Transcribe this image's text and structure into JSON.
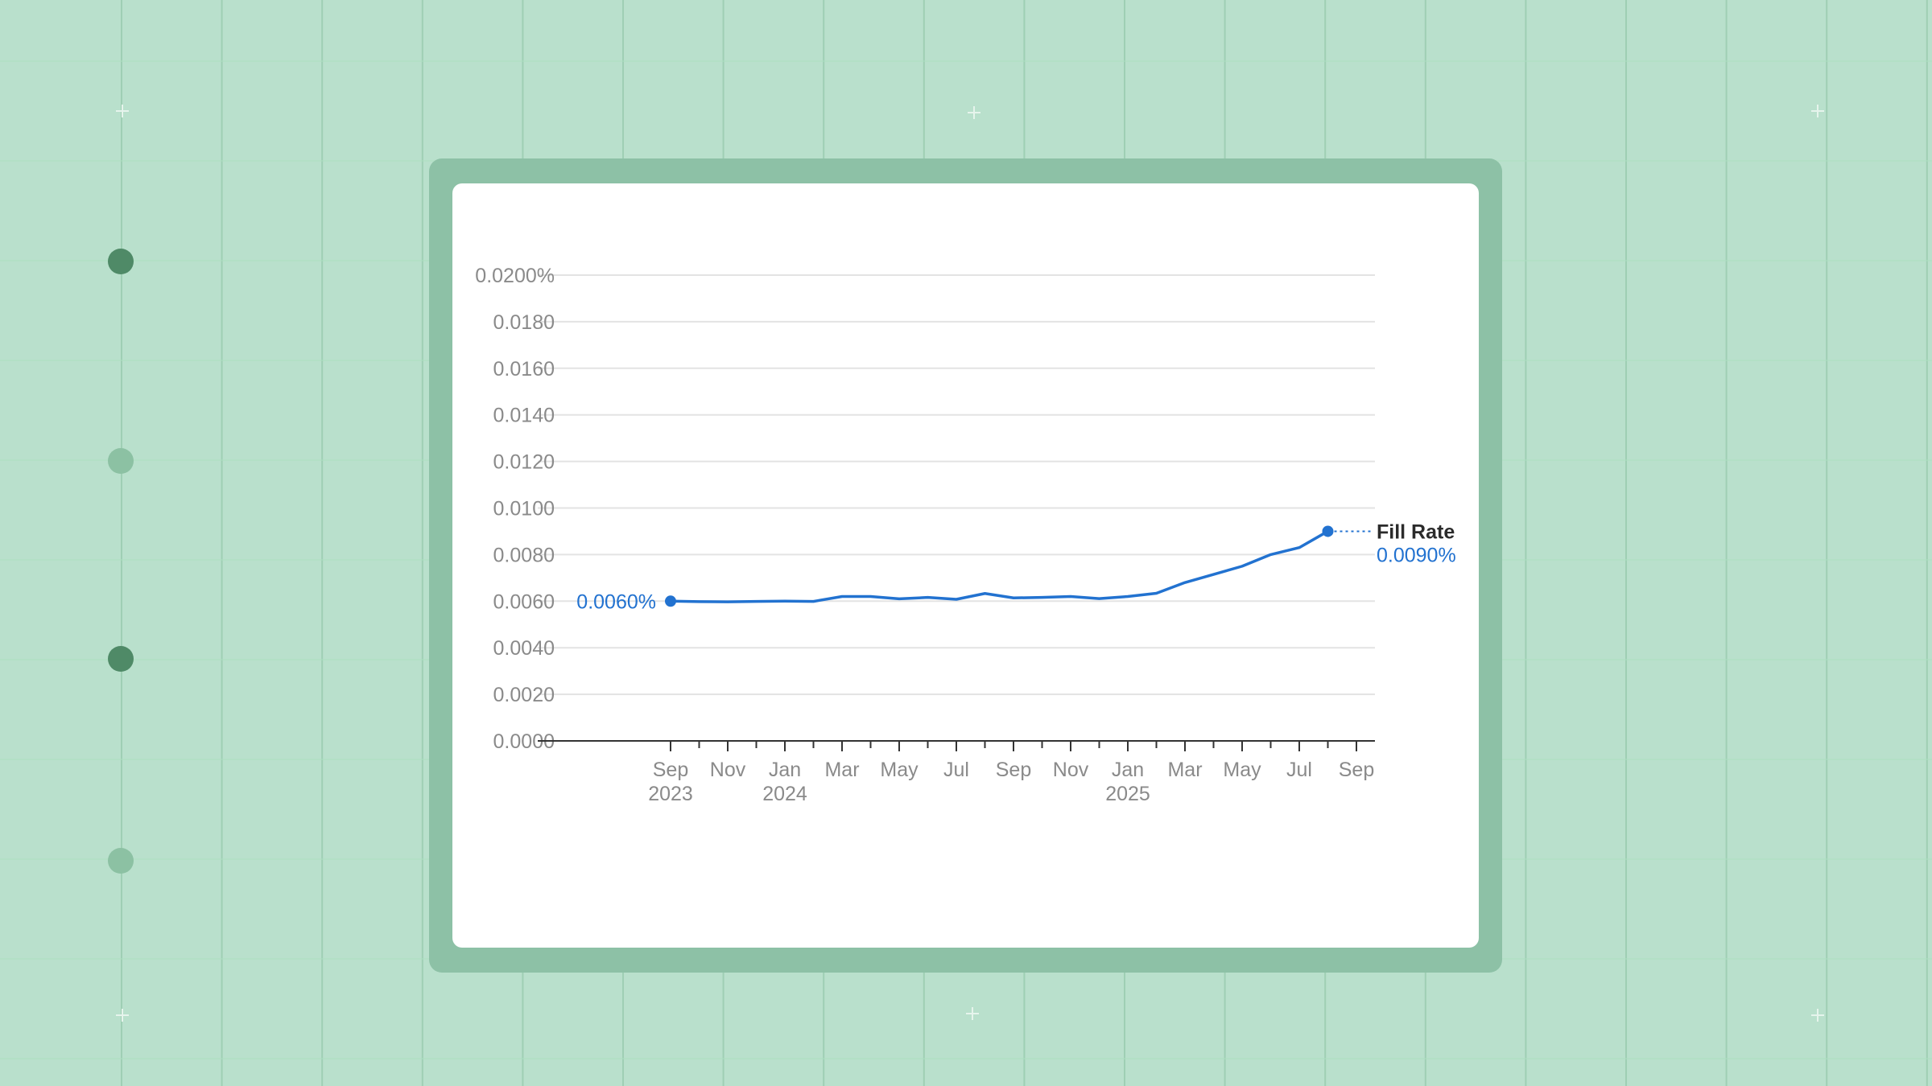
{
  "colors": {
    "background": "#b9e0cc",
    "grid_line": "#9fcfb4",
    "frame": "#8dc1a6",
    "card": "#ffffff",
    "series": "#2272d0",
    "dot_dark": "#4f8a67",
    "dot_light": "#8cc1a3"
  },
  "chart_data": {
    "type": "line",
    "title": "",
    "xlabel": "",
    "ylabel": "",
    "ylim": [
      0,
      0.02
    ],
    "y_unit": "%",
    "y_ticks": [
      "0.0000",
      "0.0020",
      "0.0040",
      "0.0060",
      "0.0080",
      "0.0100",
      "0.0120",
      "0.0140",
      "0.0160",
      "0.0180",
      "0.0200%"
    ],
    "grid": true,
    "x_ticks": [
      {
        "month": "Sep",
        "year": "2023"
      },
      {
        "month": "Nov",
        "year": ""
      },
      {
        "month": "Jan",
        "year": "2024"
      },
      {
        "month": "Mar",
        "year": ""
      },
      {
        "month": "May",
        "year": ""
      },
      {
        "month": "Jul",
        "year": ""
      },
      {
        "month": "Sep",
        "year": ""
      },
      {
        "month": "Nov",
        "year": ""
      },
      {
        "month": "Jan",
        "year": "2025"
      },
      {
        "month": "Mar",
        "year": ""
      },
      {
        "month": "May",
        "year": ""
      },
      {
        "month": "Jul",
        "year": ""
      },
      {
        "month": "Sep",
        "year": ""
      }
    ],
    "series": [
      {
        "name": "Fill Rate",
        "x": [
          "2023-09",
          "2023-10",
          "2023-11",
          "2023-12",
          "2024-01",
          "2024-02",
          "2024-03",
          "2024-04",
          "2024-05",
          "2024-06",
          "2024-07",
          "2024-08",
          "2024-09",
          "2024-10",
          "2024-11",
          "2024-12",
          "2025-01",
          "2025-02",
          "2025-03",
          "2025-04",
          "2025-05",
          "2025-06",
          "2025-07",
          "2025-08"
        ],
        "values": [
          0.006,
          0.00598,
          0.00597,
          0.00599,
          0.006,
          0.00599,
          0.0062,
          0.0062,
          0.0061,
          0.00616,
          0.00608,
          0.00633,
          0.00614,
          0.00616,
          0.0062,
          0.00611,
          0.0062,
          0.00634,
          0.0068,
          0.00715,
          0.0075,
          0.008,
          0.0083,
          0.009
        ]
      }
    ],
    "start_label": "0.0060%",
    "end_label_name": "Fill Rate",
    "end_label_value": "0.0090%"
  }
}
